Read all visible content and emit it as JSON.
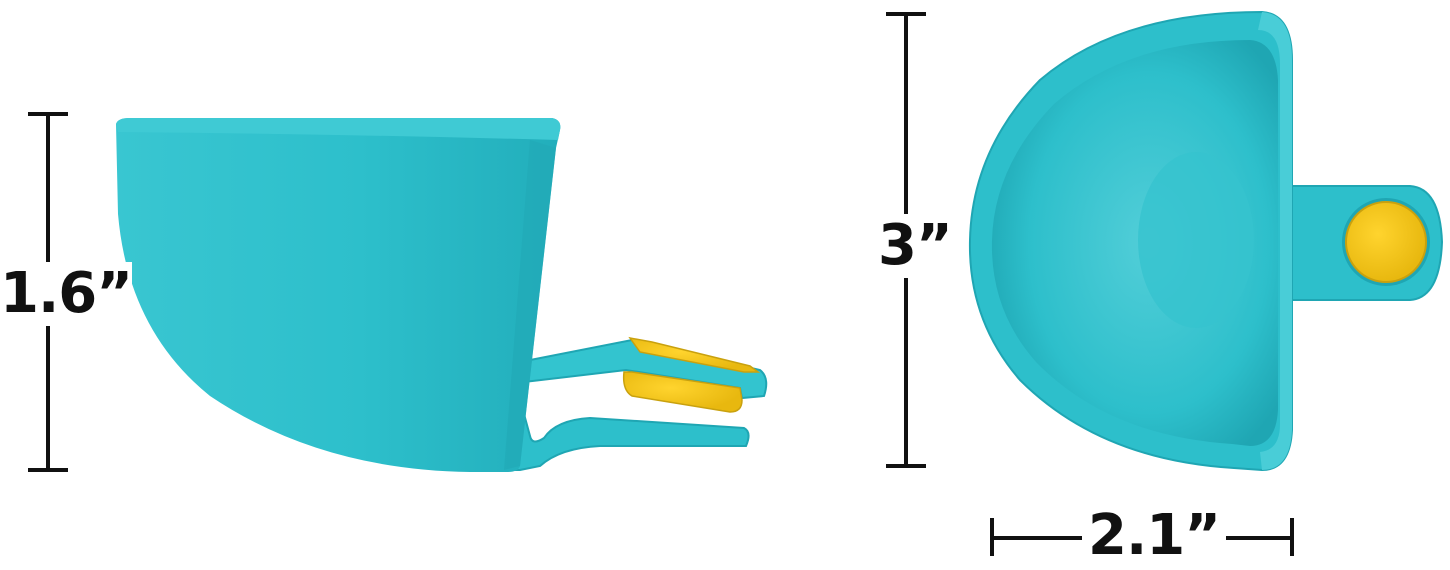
{
  "product": {
    "colors": {
      "body": "#2DBFCB",
      "body_shadow": "#1FA6B3",
      "body_highlight": "#5ED3DC",
      "clip_pad": "#F5C518",
      "clip_pad_shadow": "#C9A10E",
      "dimension_lines": "#111111",
      "background": "#FFFFFF"
    }
  },
  "dimensions": {
    "side_view_height": "1.6”",
    "top_view_height": "3”",
    "top_view_width": "2.1”"
  }
}
